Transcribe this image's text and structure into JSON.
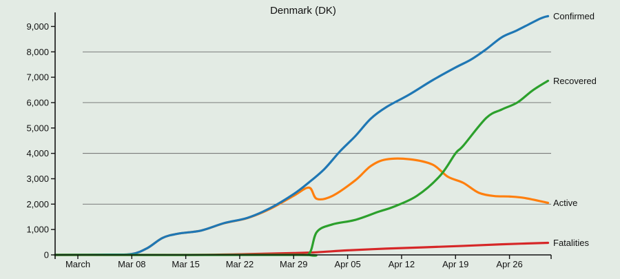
{
  "chart_data": {
    "type": "line",
    "title": "Denmark (DK)",
    "xlabel": "",
    "ylabel": "",
    "start_date": "2020-03-01",
    "end_date": "2020-05-02",
    "x_ticks": [
      {
        "date": "2020-03-01",
        "label": "March"
      },
      {
        "date": "2020-03-08",
        "label": "Mar 08"
      },
      {
        "date": "2020-03-15",
        "label": "Mar 15"
      },
      {
        "date": "2020-03-22",
        "label": "Mar 22"
      },
      {
        "date": "2020-03-29",
        "label": "Mar 29"
      },
      {
        "date": "2020-04-05",
        "label": "Apr 05"
      },
      {
        "date": "2020-04-12",
        "label": "Apr 12"
      },
      {
        "date": "2020-04-19",
        "label": "Apr 19"
      },
      {
        "date": "2020-04-26",
        "label": "Apr 26"
      }
    ],
    "ylim": [
      0,
      9500
    ],
    "y_ticks": [
      {
        "value": 0,
        "label": "0"
      },
      {
        "value": 1000,
        "label": "1,000"
      },
      {
        "value": 2000,
        "label": "2,000"
      },
      {
        "value": 3000,
        "label": "3,000"
      },
      {
        "value": 4000,
        "label": "4,000"
      },
      {
        "value": 5000,
        "label": "5,000"
      },
      {
        "value": 6000,
        "label": "6,000"
      },
      {
        "value": 7000,
        "label": "7,000"
      },
      {
        "value": 8000,
        "label": "8,000"
      },
      {
        "value": 9000,
        "label": "9,000"
      }
    ],
    "gridlines": [
      2000,
      4000,
      6000,
      8000
    ],
    "series": [
      {
        "name": "Confirmed",
        "color": "#1f77b4",
        "points": [
          [
            "2020-02-27",
            0
          ],
          [
            "2020-03-05",
            10
          ],
          [
            "2020-03-08",
            35
          ],
          [
            "2020-03-10",
            264
          ],
          [
            "2020-03-12",
            670
          ],
          [
            "2020-03-14",
            836
          ],
          [
            "2020-03-17",
            960
          ],
          [
            "2020-03-20",
            1255
          ],
          [
            "2020-03-23",
            1460
          ],
          [
            "2020-03-26",
            1850
          ],
          [
            "2020-03-29",
            2395
          ],
          [
            "2020-03-31",
            2860
          ],
          [
            "2020-04-02",
            3386
          ],
          [
            "2020-04-04",
            4077
          ],
          [
            "2020-04-06",
            4681
          ],
          [
            "2020-04-08",
            5366
          ],
          [
            "2020-04-10",
            5819
          ],
          [
            "2020-04-13",
            6318
          ],
          [
            "2020-04-16",
            6879
          ],
          [
            "2020-04-19",
            7384
          ],
          [
            "2020-04-21",
            7695
          ],
          [
            "2020-04-23",
            8108
          ],
          [
            "2020-04-25",
            8575
          ],
          [
            "2020-04-27",
            8851
          ],
          [
            "2020-04-30",
            9311
          ],
          [
            "2020-05-01",
            9407
          ]
        ]
      },
      {
        "name": "Recovered",
        "color": "#2ca02c",
        "points": [
          [
            "2020-02-27",
            0
          ],
          [
            "2020-03-29",
            0
          ],
          [
            "2020-03-31",
            50
          ],
          [
            "2020-04-01",
            900
          ],
          [
            "2020-04-03",
            1200
          ],
          [
            "2020-04-06",
            1380
          ],
          [
            "2020-04-09",
            1700
          ],
          [
            "2020-04-11",
            1900
          ],
          [
            "2020-04-14",
            2330
          ],
          [
            "2020-04-17",
            3120
          ],
          [
            "2020-04-19",
            4000
          ],
          [
            "2020-04-20",
            4300
          ],
          [
            "2020-04-23",
            5400
          ],
          [
            "2020-04-25",
            5730
          ],
          [
            "2020-04-27",
            6000
          ],
          [
            "2020-04-29",
            6480
          ],
          [
            "2020-05-01",
            6860
          ]
        ]
      },
      {
        "name": "Active",
        "color": "#ff7f0e",
        "points": [
          [
            "2020-02-27",
            0
          ],
          [
            "2020-03-05",
            10
          ],
          [
            "2020-03-08",
            35
          ],
          [
            "2020-03-10",
            264
          ],
          [
            "2020-03-12",
            670
          ],
          [
            "2020-03-14",
            836
          ],
          [
            "2020-03-17",
            960
          ],
          [
            "2020-03-20",
            1250
          ],
          [
            "2020-03-23",
            1450
          ],
          [
            "2020-03-26",
            1820
          ],
          [
            "2020-03-29",
            2330
          ],
          [
            "2020-03-31",
            2650
          ],
          [
            "2020-04-01",
            2210
          ],
          [
            "2020-04-03",
            2320
          ],
          [
            "2020-04-06",
            2940
          ],
          [
            "2020-04-08",
            3500
          ],
          [
            "2020-04-10",
            3760
          ],
          [
            "2020-04-13",
            3770
          ],
          [
            "2020-04-16",
            3560
          ],
          [
            "2020-04-18",
            3080
          ],
          [
            "2020-04-20",
            2840
          ],
          [
            "2020-04-22",
            2450
          ],
          [
            "2020-04-24",
            2320
          ],
          [
            "2020-04-26",
            2300
          ],
          [
            "2020-04-28",
            2240
          ],
          [
            "2020-05-01",
            2050
          ]
        ]
      },
      {
        "name": "Fatalities",
        "color": "#d62728",
        "points": [
          [
            "2020-02-27",
            0
          ],
          [
            "2020-03-14",
            0
          ],
          [
            "2020-03-20",
            13
          ],
          [
            "2020-03-23",
            32
          ],
          [
            "2020-03-26",
            52
          ],
          [
            "2020-03-29",
            72
          ],
          [
            "2020-04-01",
            104
          ],
          [
            "2020-04-05",
            179
          ],
          [
            "2020-04-10",
            247
          ],
          [
            "2020-04-15",
            299
          ],
          [
            "2020-04-20",
            355
          ],
          [
            "2020-04-25",
            418
          ],
          [
            "2020-05-01",
            475
          ]
        ]
      }
    ]
  }
}
